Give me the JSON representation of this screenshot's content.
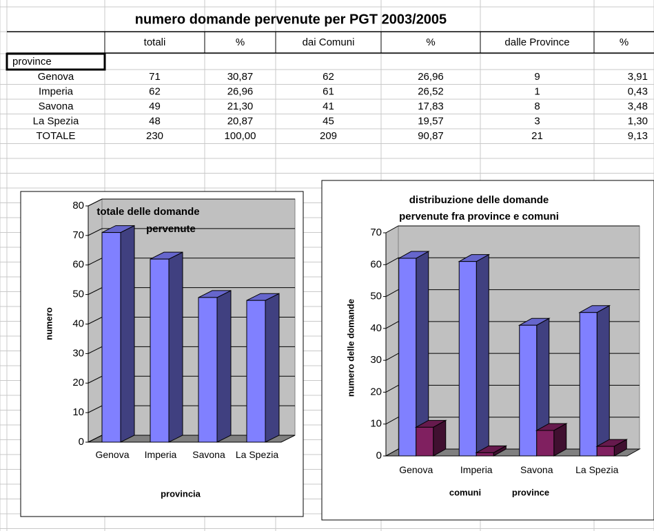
{
  "table": {
    "title": "numero domande pervenute per PGT 2003/2005",
    "corner": "province",
    "headers": [
      "totali",
      "%",
      "dai Comuni",
      "%",
      "dalle Province",
      "%"
    ],
    "rows": [
      [
        "Genova",
        "71",
        "30,87",
        "62",
        "26,96",
        "9",
        "3,91"
      ],
      [
        "Imperia",
        "62",
        "26,96",
        "61",
        "26,52",
        "1",
        "0,43"
      ],
      [
        "Savona",
        "49",
        "21,30",
        "41",
        "17,83",
        "8",
        "3,48"
      ],
      [
        "La Spezia",
        "48",
        "20,87",
        "45",
        "19,57",
        "3",
        "1,30"
      ],
      [
        "TOTALE",
        "230",
        "100,00",
        "209",
        "90,87",
        "21",
        "9,13"
      ]
    ]
  },
  "chart_data": [
    {
      "type": "bar3d",
      "title": [
        "totale delle domande",
        "pervenute"
      ],
      "x_label": "provincia",
      "y_label": "numero",
      "categories": [
        "Genova",
        "Imperia",
        "Savona",
        "La Spezia"
      ],
      "values": [
        71,
        62,
        49,
        48
      ],
      "color": "#8080ff",
      "ylim": [
        0,
        80
      ],
      "yticks": [
        0,
        10,
        20,
        30,
        40,
        50,
        60,
        70,
        80
      ],
      "grid": true
    },
    {
      "type": "bar3d",
      "title": [
        "distribuzione delle domande",
        "pervenute fra province e comuni"
      ],
      "y_label": "numero delle domande",
      "categories": [
        "Genova",
        "Imperia",
        "Savona",
        "La Spezia"
      ],
      "series": [
        {
          "name": "comuni",
          "color": "#8080ff",
          "values": [
            62,
            61,
            41,
            45
          ]
        },
        {
          "name": "province",
          "color": "#802060",
          "values": [
            9,
            1,
            8,
            3
          ]
        }
      ],
      "ylim": [
        0,
        70
      ],
      "yticks": [
        0,
        10,
        20,
        30,
        40,
        50,
        60,
        70
      ],
      "grid": true
    }
  ]
}
